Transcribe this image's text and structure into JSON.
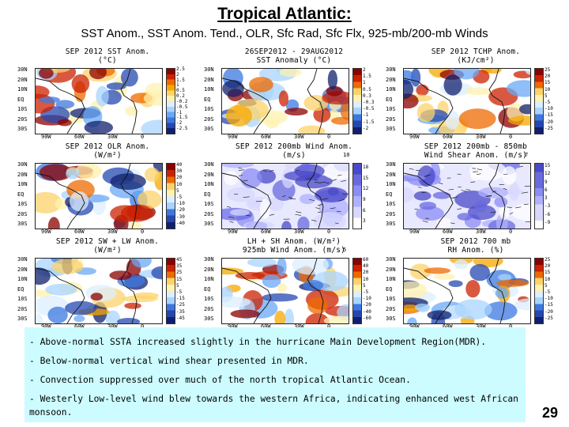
{
  "slide": {
    "title": "Tropical Atlantic:",
    "subtitle": "SST Anom., SST Anom. Tend., OLR, Sfc Rad, Sfc Flx, 925-mb/200-mb Winds",
    "page_number": "29"
  },
  "axes": {
    "lat_labels": [
      "30N",
      "20N",
      "10N",
      "EQ",
      "10S",
      "20S",
      "30S"
    ],
    "lon_labels": [
      "90W",
      "60W",
      "30W",
      "0"
    ]
  },
  "panels": [
    {
      "title": "SEP 2012 SST Anom.\n(°C)",
      "colorbar": [
        "2.5",
        "2",
        "1.5",
        "1",
        "0.5",
        "0.2",
        "-0.2",
        "-0.5",
        "-1",
        "-1.5",
        "-2",
        "-2.5"
      ],
      "scheme": "sst"
    },
    {
      "title": "26SEP2012 - 29AUG2012\nSST Anomaly (°C)",
      "colorbar": [
        "2",
        "1.5",
        "1",
        "0.5",
        "0.3",
        "-0.3",
        "-0.5",
        "-1",
        "-1.5",
        "-2"
      ],
      "scheme": "sst"
    },
    {
      "title": "SEP 2012 TCHP Anom.\n(KJ/cm²)",
      "colorbar": [
        "25",
        "20",
        "15",
        "10",
        "5",
        "-5",
        "-10",
        "-15",
        "-20",
        "-25"
      ],
      "scheme": "sst"
    },
    {
      "title": "SEP 2012 OLR Anom.\n(W/m²)",
      "colorbar": [
        "40",
        "30",
        "20",
        "10",
        "5",
        "-5",
        "-10",
        "-20",
        "-30",
        "-40"
      ],
      "scheme": "olr"
    },
    {
      "title": "SEP 2012 200mb Wind Anom.\n(m/s)",
      "colorbar": [
        "18",
        "15",
        "12",
        "9",
        "6",
        "3"
      ],
      "scheme": "wind",
      "vector": "10"
    },
    {
      "title": "SEP 2012 200mb - 850mb\nWind Shear Anom. (m/s)",
      "colorbar": [
        "15",
        "12",
        "9",
        "6",
        "3",
        "-3",
        "-6",
        "-9"
      ],
      "scheme": "wind",
      "vector": "7"
    },
    {
      "title": "SEP 2012 SW + LW Anom.\n(W/m²)",
      "colorbar": [
        "45",
        "35",
        "25",
        "15",
        "5",
        "-5",
        "-15",
        "-25",
        "-35",
        "-45"
      ],
      "scheme": "sst"
    },
    {
      "title": "LH + SH Anom. (W/m²)\n925mb Wind Anom. (m/s)",
      "colorbar": [
        "60",
        "40",
        "20",
        "10",
        "5",
        "-5",
        "-10",
        "-20",
        "-40",
        "-60"
      ],
      "scheme": "sst",
      "vector": "5"
    },
    {
      "title": "SEP 2012 700 mb\nRH Anom. (%)",
      "colorbar": [
        "25",
        "20",
        "15",
        "10",
        "5",
        "-5",
        "-10",
        "-15",
        "-20",
        "-25"
      ],
      "scheme": "sst"
    }
  ],
  "notes": [
    "- Above-normal SSTA increased slightly in the hurricane Main Development Region(MDR).",
    "- Below-normal vertical wind shear presented in MDR.",
    "- Convection suppressed over much of the north tropical Atlantic Ocean.",
    "- Westerly Low-level  wind blew towards the  western Africa, indicating enhanced west African monsoon."
  ],
  "colors": {
    "notes_background": "#ccfcff",
    "warm": [
      "#8b0000",
      "#cc2200",
      "#ee6a00",
      "#f7a800",
      "#fcd36b",
      "#fff2b0"
    ],
    "cool": [
      "#dceeff",
      "#a8d4ff",
      "#6aa8f5",
      "#3c78e0",
      "#2448b0",
      "#10206e"
    ],
    "wind": [
      "#ffffff",
      "#d8d8ff",
      "#b0b0ff",
      "#8c8cf5",
      "#6a6ae0",
      "#4a4ac8"
    ]
  }
}
